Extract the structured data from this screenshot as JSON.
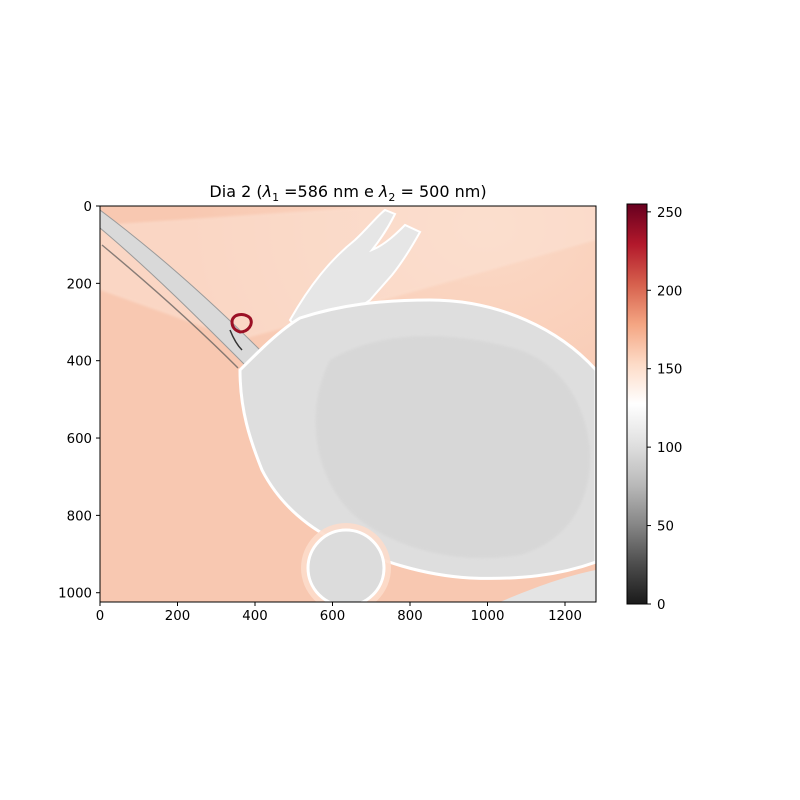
{
  "chart_data": {
    "type": "heatmap",
    "title": {
      "prefix": "Dia 2 (",
      "lambda1_symbol": "λ",
      "lambda1_sub": "1",
      "lambda1_value": " =586 nm e ",
      "lambda2_symbol": "λ",
      "lambda2_sub": "2",
      "lambda2_value": " = 500 nm)"
    },
    "xlabel": "",
    "ylabel": "",
    "xlim": [
      0,
      1280
    ],
    "ylim": [
      1024,
      0
    ],
    "xticks": [
      0,
      200,
      400,
      600,
      800,
      1000,
      1200
    ],
    "yticks": [
      0,
      200,
      400,
      600,
      800,
      1000
    ],
    "colorbar": {
      "range": [
        0,
        255
      ],
      "ticks": [
        0,
        50,
        100,
        150,
        200,
        250
      ],
      "colormap": "RdGy_r",
      "stops": [
        "#1a1a1a",
        "#4d4d4d",
        "#878787",
        "#bababa",
        "#e0e0e0",
        "#ffffff",
        "#fddbc7",
        "#f4a582",
        "#d6604d",
        "#b2182b",
        "#67001f"
      ]
    },
    "regions": {
      "background_value": 165,
      "specimen_value": 108,
      "edge_value": 60,
      "highlight_value": 240
    },
    "grid": false
  }
}
